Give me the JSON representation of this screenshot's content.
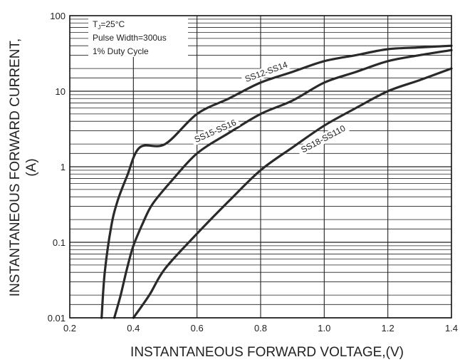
{
  "chart_data": {
    "type": "line",
    "xlabel": "INSTANTANEOUS FORWARD VOLTAGE,(V)",
    "ylabel_line1": "INSTANTANEOUS FORWARD CURRENT,",
    "ylabel_line2": "(A)",
    "xlim": [
      0.2,
      1.4
    ],
    "ylim": [
      0.01,
      100
    ],
    "yscale": "log",
    "grid": true,
    "x_ticks": [
      "0.2",
      "0.4",
      "0.6",
      "0.8",
      "1.0",
      "1.2",
      "1.4"
    ],
    "y_ticks": [
      "0.01",
      "0.1",
      "1",
      "10",
      "100"
    ],
    "conditions": {
      "line1": "T",
      "line1_sub": "J",
      "line1_rest": "=25°C",
      "line2": "Pulse Width=300us",
      "line3": "1% Duty Cycle"
    },
    "series": [
      {
        "name": "SS12-SS14",
        "x": [
          0.3,
          0.31,
          0.33,
          0.35,
          0.38,
          0.42,
          0.5,
          0.6,
          0.7,
          0.8,
          0.9,
          1.0,
          1.1,
          1.2,
          1.3,
          1.4
        ],
        "y": [
          0.01,
          0.04,
          0.16,
          0.35,
          0.75,
          1.8,
          2.0,
          5.0,
          8.0,
          13.0,
          18.0,
          25.0,
          30.0,
          36.0,
          38.0,
          40.0
        ]
      },
      {
        "name": "SS15-SS16",
        "x": [
          0.34,
          0.36,
          0.38,
          0.4,
          0.43,
          0.46,
          0.52,
          0.6,
          0.7,
          0.8,
          0.9,
          1.0,
          1.1,
          1.2,
          1.3,
          1.4
        ],
        "y": [
          0.01,
          0.02,
          0.045,
          0.09,
          0.18,
          0.32,
          0.65,
          1.5,
          2.8,
          5.0,
          7.5,
          13.0,
          18.0,
          25.0,
          30.0,
          35.0
        ]
      },
      {
        "name": "SS18-SS110",
        "x": [
          0.4,
          0.45,
          0.5,
          0.6,
          0.7,
          0.8,
          0.9,
          1.0,
          1.1,
          1.2,
          1.3,
          1.4
        ],
        "y": [
          0.01,
          0.02,
          0.045,
          0.13,
          0.35,
          0.9,
          1.8,
          3.5,
          6.0,
          10.0,
          14.0,
          20.0
        ]
      }
    ],
    "labels": [
      {
        "text": "SS12-SS14",
        "x": 0.82,
        "y": 17.0,
        "angle": -20
      },
      {
        "text": "SS15-SS16",
        "x": 0.66,
        "y": 2.8,
        "angle": -24
      },
      {
        "text": "SS18-SS110",
        "x": 1.0,
        "y": 2.2,
        "angle": -28
      }
    ]
  }
}
